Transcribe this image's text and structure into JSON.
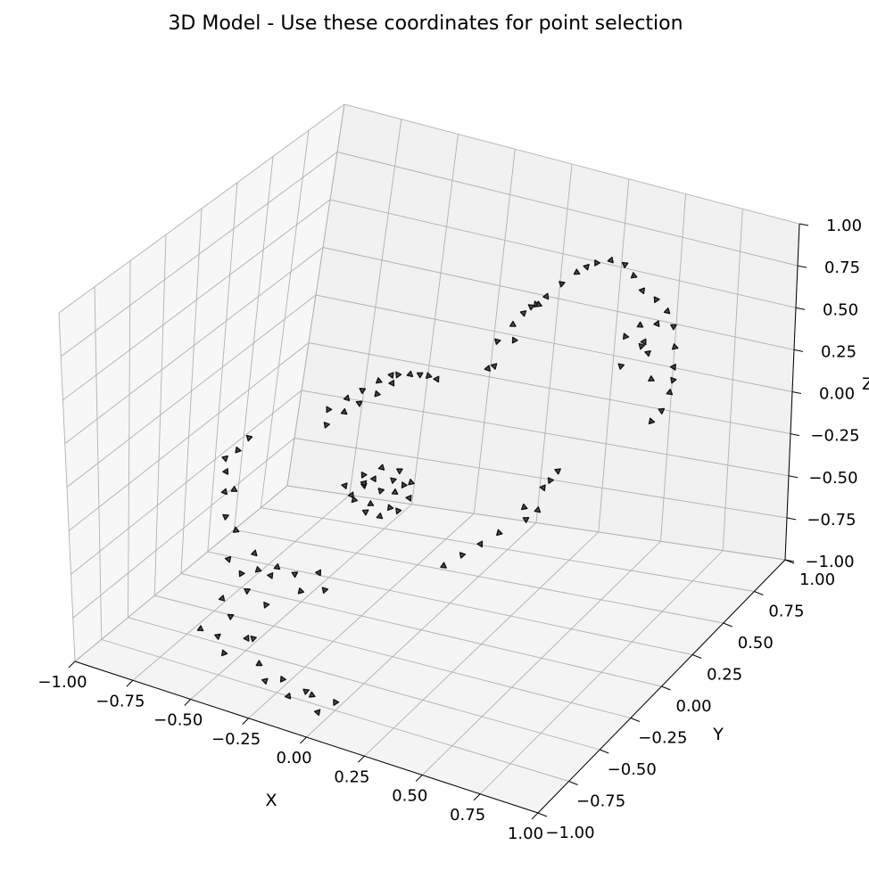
{
  "chart_data": {
    "type": "scatter",
    "projection": "3d",
    "title": "3D Model - Use these coordinates for point selection",
    "xlabel": "X",
    "ylabel": "Y",
    "zlabel": "Z",
    "xlim": [
      -1,
      1
    ],
    "ylim": [
      -1,
      1
    ],
    "zlim": [
      -1,
      1
    ],
    "ticks": [
      -1.0,
      -0.75,
      -0.5,
      -0.25,
      0.0,
      0.25,
      0.5,
      0.75,
      1.0
    ],
    "tick_labels": [
      "−1.00",
      "−0.75",
      "−0.50",
      "−0.25",
      "0.00",
      "0.25",
      "0.50",
      "0.75",
      "1.00"
    ],
    "grid": true,
    "marker": "triangle",
    "marker_color": "#4a5158",
    "edge_color": "#111111",
    "pane_colors": {
      "left": "#f7f7f7",
      "back": "#f1f1f1",
      "floor": "#f4f4f4"
    },
    "series": [
      {
        "points": [
          [
            -0.6,
            0.35,
            -0.15
          ],
          [
            -0.55,
            0.4,
            -0.1
          ],
          [
            -0.5,
            0.42,
            -0.05
          ],
          [
            -0.45,
            0.45,
            0.0
          ],
          [
            -0.4,
            0.45,
            0.05
          ],
          [
            -0.35,
            0.4,
            0.1
          ],
          [
            -0.3,
            0.4,
            0.12
          ],
          [
            -0.25,
            0.38,
            0.15
          ],
          [
            -0.2,
            0.35,
            0.18
          ],
          [
            -0.15,
            0.32,
            0.2
          ],
          [
            -0.58,
            0.3,
            -0.2
          ],
          [
            -0.52,
            0.32,
            -0.12
          ],
          [
            -0.48,
            0.36,
            -0.08
          ],
          [
            -0.42,
            0.38,
            -0.02
          ],
          [
            -0.38,
            0.42,
            0.03
          ],
          [
            0.0,
            0.5,
            0.35
          ],
          [
            0.05,
            0.52,
            0.45
          ],
          [
            0.1,
            0.5,
            0.55
          ],
          [
            0.15,
            0.5,
            0.62
          ],
          [
            0.2,
            0.48,
            0.7
          ],
          [
            0.25,
            0.5,
            0.78
          ],
          [
            0.3,
            0.52,
            0.85
          ],
          [
            0.35,
            0.5,
            0.92
          ],
          [
            0.4,
            0.48,
            0.98
          ],
          [
            0.45,
            0.5,
            1.0
          ],
          [
            0.5,
            0.52,
            0.98
          ],
          [
            0.55,
            0.5,
            0.95
          ],
          [
            0.6,
            0.48,
            0.9
          ],
          [
            0.65,
            0.5,
            0.85
          ],
          [
            0.7,
            0.5,
            0.8
          ],
          [
            0.72,
            0.52,
            0.7
          ],
          [
            0.74,
            0.5,
            0.6
          ],
          [
            0.75,
            0.48,
            0.5
          ],
          [
            0.74,
            0.5,
            0.4
          ],
          [
            0.72,
            0.52,
            0.3
          ],
          [
            0.7,
            0.5,
            0.2
          ],
          [
            0.66,
            0.5,
            0.12
          ],
          [
            0.62,
            0.48,
            0.6
          ],
          [
            0.6,
            0.5,
            0.55
          ],
          [
            0.58,
            0.52,
            0.65
          ],
          [
            0.62,
            0.52,
            0.5
          ],
          [
            0.55,
            0.46,
            0.62
          ],
          [
            0.68,
            0.46,
            0.75
          ],
          [
            0.52,
            0.5,
            0.4
          ],
          [
            0.64,
            0.52,
            0.35
          ],
          [
            0.02,
            0.45,
            0.25
          ],
          [
            0.08,
            0.48,
            0.4
          ],
          [
            -0.02,
            0.48,
            0.2
          ],
          [
            0.12,
            0.52,
            0.58
          ],
          [
            0.18,
            0.46,
            0.66
          ],
          [
            -0.3,
            -0.1,
            -0.2
          ],
          [
            -0.25,
            -0.05,
            -0.15
          ],
          [
            -0.2,
            0.0,
            -0.12
          ],
          [
            -0.15,
            0.05,
            -0.15
          ],
          [
            -0.1,
            0.05,
            -0.2
          ],
          [
            -0.08,
            0.0,
            -0.25
          ],
          [
            -0.1,
            -0.05,
            -0.3
          ],
          [
            -0.15,
            -0.1,
            -0.32
          ],
          [
            -0.2,
            -0.12,
            -0.3
          ],
          [
            -0.25,
            -0.12,
            -0.25
          ],
          [
            -0.22,
            -0.02,
            -0.18
          ],
          [
            -0.18,
            -0.04,
            -0.22
          ],
          [
            -0.14,
            0.0,
            -0.24
          ],
          [
            -0.24,
            -0.06,
            -0.2
          ],
          [
            -0.12,
            -0.08,
            -0.27
          ],
          [
            -0.28,
            -0.08,
            -0.26
          ],
          [
            -0.16,
            0.02,
            -0.19
          ],
          [
            -0.2,
            -0.08,
            -0.28
          ],
          [
            -0.26,
            -0.02,
            -0.22
          ],
          [
            -0.12,
            0.03,
            -0.21
          ],
          [
            -0.65,
            -0.4,
            -0.2
          ],
          [
            -0.62,
            -0.45,
            -0.3
          ],
          [
            -0.6,
            -0.4,
            -0.4
          ],
          [
            -0.58,
            -0.5,
            -0.5
          ],
          [
            -0.55,
            -0.45,
            -0.6
          ],
          [
            -0.52,
            -0.4,
            -0.5
          ],
          [
            -0.5,
            -0.5,
            -0.65
          ],
          [
            -0.48,
            -0.45,
            -0.55
          ],
          [
            -0.45,
            -0.4,
            -0.6
          ],
          [
            -0.42,
            -0.5,
            -0.7
          ],
          [
            -0.4,
            -0.45,
            -0.5
          ],
          [
            -0.35,
            -0.4,
            -0.55
          ],
          [
            -0.3,
            -0.45,
            -0.6
          ],
          [
            -0.25,
            -0.4,
            -0.5
          ],
          [
            -0.2,
            -0.45,
            -0.55
          ],
          [
            -0.6,
            -0.7,
            -0.8
          ],
          [
            -0.55,
            -0.65,
            -0.85
          ],
          [
            -0.5,
            -0.7,
            -0.9
          ],
          [
            -0.45,
            -0.6,
            -0.85
          ],
          [
            -0.4,
            -0.65,
            -0.8
          ],
          [
            -0.35,
            -0.7,
            -0.9
          ],
          [
            -0.3,
            -0.75,
            -0.95
          ],
          [
            -0.25,
            -0.7,
            -0.95
          ],
          [
            -0.2,
            -0.75,
            -1.0
          ],
          [
            -0.15,
            -0.7,
            -0.98
          ],
          [
            -0.1,
            -0.75,
            -0.95
          ],
          [
            -0.05,
            -0.8,
            -1.0
          ],
          [
            0.0,
            -0.75,
            -0.95
          ],
          [
            -0.58,
            -0.55,
            -0.7
          ],
          [
            -0.52,
            -0.6,
            -0.75
          ],
          [
            0.3,
            0.2,
            -0.3
          ],
          [
            0.35,
            0.25,
            -0.2
          ],
          [
            0.4,
            0.2,
            -0.1
          ],
          [
            0.38,
            0.15,
            -0.25
          ],
          [
            0.32,
            0.18,
            -0.35
          ],
          [
            0.25,
            0.1,
            -0.4
          ],
          [
            0.2,
            0.05,
            -0.45
          ],
          [
            0.15,
            0.0,
            -0.5
          ],
          [
            0.1,
            -0.05,
            -0.55
          ],
          [
            0.42,
            0.22,
            -0.05
          ],
          [
            -0.7,
            -0.2,
            -0.1
          ],
          [
            -0.72,
            -0.25,
            -0.2
          ],
          [
            -0.68,
            -0.15,
            -0.05
          ],
          [
            -0.66,
            -0.3,
            -0.25
          ],
          [
            -0.74,
            -0.22,
            -0.15
          ]
        ]
      }
    ]
  }
}
